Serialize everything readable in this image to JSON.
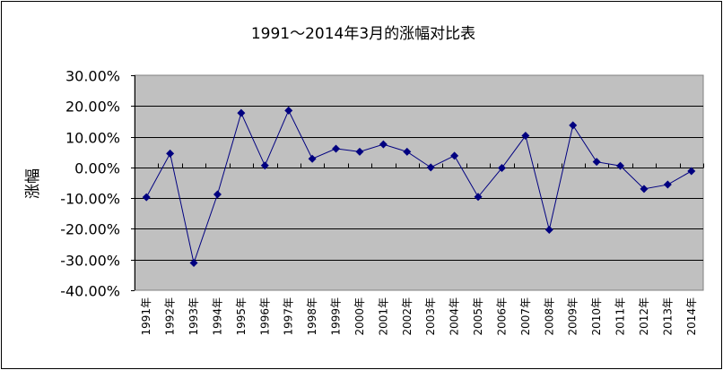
{
  "chart_data": {
    "type": "line",
    "title": "1991～2014年3月的涨幅对比表",
    "ylabel": "涨幅",
    "xlabel": "",
    "ylim": [
      -40,
      30
    ],
    "yticks": [
      30,
      20,
      10,
      0,
      -10,
      -20,
      -30,
      -40
    ],
    "ytick_labels": [
      "30.00%",
      "20.00%",
      "10.00%",
      "0.00%",
      "-10.00%",
      "-20.00%",
      "-30.00%",
      "-40.00%"
    ],
    "grid": true,
    "legend": "none",
    "categories": [
      "1991年",
      "1992年",
      "1993年",
      "1994年",
      "1995年",
      "1996年",
      "1997年",
      "1998年",
      "1999年",
      "2000年",
      "2001年",
      "2002年",
      "2003年",
      "2004年",
      "2005年",
      "2006年",
      "2007年",
      "2008年",
      "2009年",
      "2010年",
      "2011年",
      "2012年",
      "2013年",
      "2014年"
    ],
    "series": [
      {
        "values": [
          -9.7,
          4.5,
          -31.1,
          -8.8,
          17.7,
          0.6,
          18.5,
          2.8,
          6.1,
          5.1,
          7.5,
          5.1,
          0.0,
          3.8,
          -9.6,
          -0.2,
          10.3,
          -20.3,
          13.7,
          1.8,
          0.5,
          -7.0,
          -5.6,
          -1.2
        ]
      }
    ],
    "colors": {
      "plot_bg": "#c0c0c0",
      "line": "#000080",
      "grid": "#000000"
    }
  }
}
